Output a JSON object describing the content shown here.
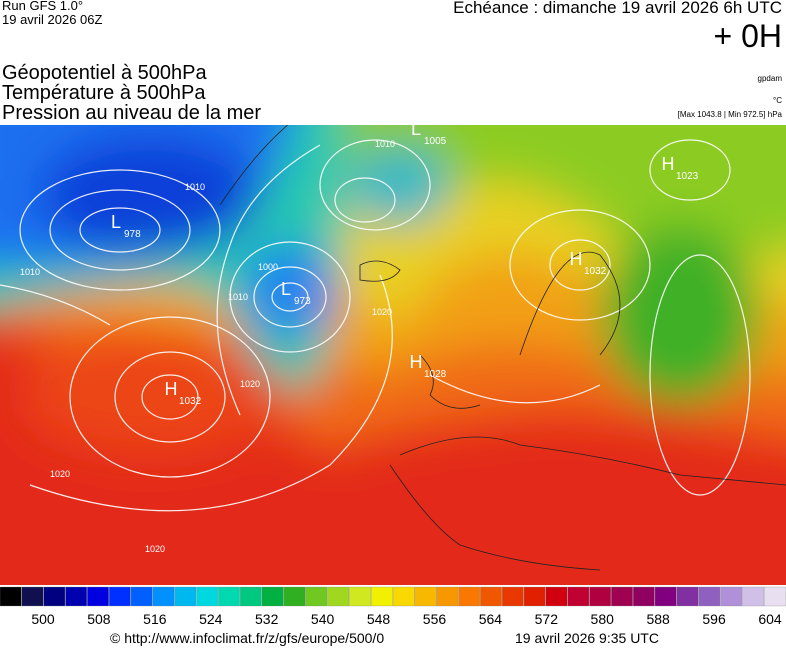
{
  "header": {
    "run": "Run GFS 1.0°",
    "run_date": "19 avril 2026 06Z",
    "echeance": "Echéance : dimanche 19 avril 2026 6h UTC",
    "lead": "+ 0H",
    "fields": [
      "Géopotentiel à 500hPa",
      "Température à 500hPa",
      "Pression au niveau de la mer"
    ],
    "unit_geo": "gpdam",
    "unit_temp": "°C",
    "pressure_range": "[Max 1043.8 | Min 972.5] hPa"
  },
  "map": {
    "centers": [
      {
        "letter": "L",
        "value": "978"
      },
      {
        "letter": "L",
        "value": "973"
      },
      {
        "letter": "H",
        "value": "1032"
      },
      {
        "letter": "H",
        "value": "1032"
      },
      {
        "letter": "H",
        "value": "1023"
      },
      {
        "letter": "L",
        "value": "1005"
      },
      {
        "letter": "H",
        "value": "1028"
      }
    ],
    "isobar_labels": [
      "1010",
      "1000",
      "1010",
      "1020",
      "1020",
      "1020",
      "1020",
      "1010",
      "1010"
    ]
  },
  "colorbar": {
    "ticks": [
      500,
      508,
      516,
      524,
      532,
      540,
      548,
      556,
      564,
      572,
      580,
      588,
      596,
      604
    ]
  },
  "footer": {
    "source": "© http://www.infoclimat.fr/z/gfs/europe/500/0",
    "time": "19 avril 2026  9:35 UTC"
  }
}
